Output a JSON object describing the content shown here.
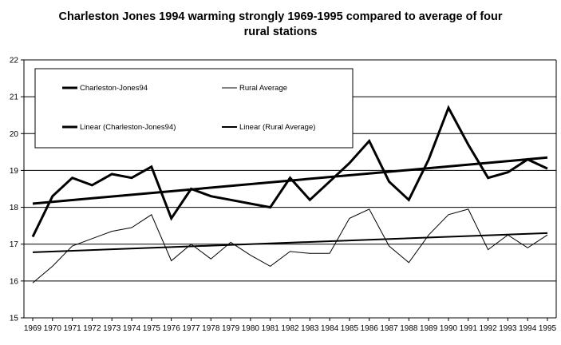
{
  "chart_data": {
    "type": "line",
    "title_line1": "Charleston Jones 1994 warming strongly 1969-1995 compared to average of four",
    "title_line2": "rural stations",
    "x": [
      1969,
      1970,
      1971,
      1972,
      1973,
      1974,
      1975,
      1976,
      1977,
      1978,
      1979,
      1980,
      1981,
      1982,
      1983,
      1984,
      1985,
      1986,
      1987,
      1988,
      1989,
      1990,
      1991,
      1992,
      1993,
      1994,
      1995
    ],
    "x_labels": [
      "1969",
      "1970",
      "1971",
      "1972",
      "1973",
      "1974",
      "1975",
      "1976",
      "1977",
      "1978",
      "1979",
      "1980",
      "1981",
      "1982",
      "1983",
      "1984",
      "1985",
      "1986",
      "1987",
      "1988",
      "1989",
      "1990",
      "1991",
      "1992",
      "1993",
      "1994",
      "1995"
    ],
    "ylim": [
      15,
      22
    ],
    "yticks": [
      15,
      16,
      17,
      18,
      19,
      20,
      21,
      22
    ],
    "grid": "horizontal",
    "series": [
      {
        "name": "Charleston-Jones94",
        "color": "#000000",
        "style": "thick",
        "values": [
          17.2,
          18.3,
          18.8,
          18.6,
          18.9,
          18.8,
          19.1,
          17.7,
          18.5,
          18.3,
          18.2,
          18.1,
          18.0,
          18.8,
          18.2,
          18.7,
          19.2,
          19.8,
          18.7,
          18.2,
          19.3,
          20.7,
          19.7,
          18.8,
          18.95,
          19.3,
          19.05
        ]
      },
      {
        "name": "Rural Average",
        "color": "#000000",
        "style": "thin",
        "values": [
          15.95,
          16.4,
          16.95,
          17.15,
          17.35,
          17.45,
          17.8,
          16.55,
          17.0,
          16.6,
          17.05,
          16.7,
          16.4,
          16.8,
          16.75,
          16.75,
          17.7,
          17.95,
          16.95,
          16.5,
          17.25,
          17.8,
          17.95,
          16.85,
          17.25,
          16.9,
          17.25
        ]
      }
    ],
    "trendlines": [
      {
        "name": "Linear (Charleston-Jones94)",
        "of": 0,
        "style": "thick",
        "start": 18.1,
        "end": 19.35
      },
      {
        "name": "Linear (Rural Average)",
        "of": 1,
        "style": "medium",
        "start": 16.78,
        "end": 17.3
      }
    ],
    "legend": {
      "placement": "top-left",
      "entries": [
        "Charleston-Jones94",
        "Rural Average",
        "Linear (Charleston-Jones94)",
        "Linear (Rural Average)"
      ]
    }
  }
}
